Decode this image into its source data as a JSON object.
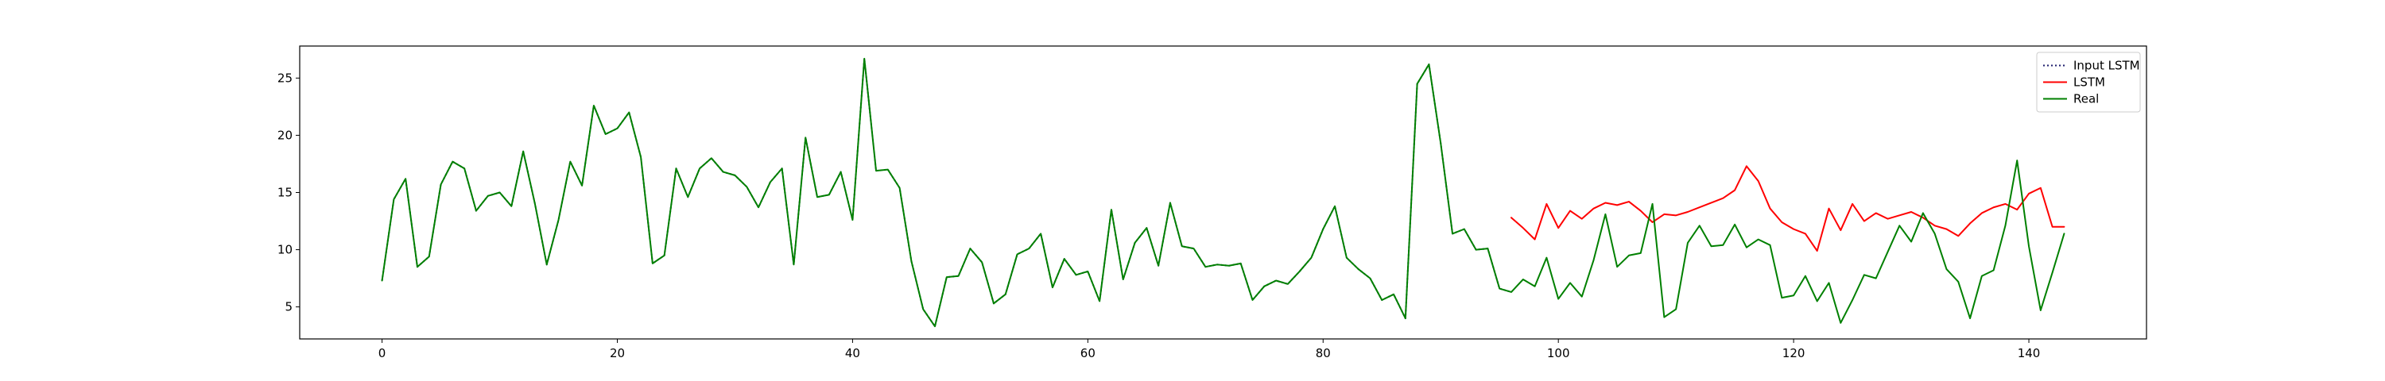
{
  "chart_data": {
    "type": "line",
    "title": "",
    "xlabel": "",
    "ylabel": "",
    "xlim": [
      -7,
      150
    ],
    "ylim": [
      2.2,
      27.8
    ],
    "grid": false,
    "legend_placement": "top-right",
    "x_ticks": [
      0,
      20,
      40,
      60,
      80,
      100,
      120,
      140
    ],
    "y_ticks": [
      5,
      10,
      15,
      20,
      25
    ],
    "series": [
      {
        "name": "Input LSTM",
        "color": "#1f1f6e",
        "style": "dotted",
        "x_start": 0,
        "values": [
          7.3,
          14.4,
          16.2,
          8.5,
          9.4,
          15.7,
          17.7,
          17.1,
          13.4,
          14.7,
          15.0,
          13.8,
          18.6,
          14.0,
          8.7,
          12.6,
          17.7,
          15.6,
          22.6,
          20.1,
          20.6,
          22.0,
          18.1,
          8.8,
          9.5,
          17.1,
          14.6,
          17.1,
          18.0,
          16.8,
          16.5,
          15.5,
          13.7,
          15.9,
          17.1,
          8.7,
          19.8,
          14.6,
          14.8,
          16.8,
          12.6,
          26.7,
          16.9,
          17.0,
          15.4,
          9.0,
          4.8,
          3.3,
          7.6,
          7.7,
          10.1,
          8.9,
          5.3,
          6.1,
          9.6,
          10.1,
          11.4,
          6.7,
          9.2,
          7.8,
          8.1,
          5.5,
          13.5,
          7.4,
          10.6,
          11.9,
          8.6,
          14.1,
          10.3,
          10.1,
          8.5,
          8.7,
          8.6,
          8.8,
          5.6,
          6.8,
          7.3,
          7.0,
          8.1,
          9.3,
          11.8,
          13.8,
          9.3,
          8.3,
          7.5,
          5.6,
          6.1,
          4.0,
          24.5,
          26.2,
          19.3,
          11.4,
          11.8,
          10.0,
          10.1,
          6.6,
          6.3
        ]
      },
      {
        "name": "LSTM",
        "color": "#ff0000",
        "style": "solid",
        "x_start": 96,
        "values": [
          12.8,
          11.9,
          10.9,
          14.0,
          11.9,
          13.4,
          12.7,
          13.6,
          14.1,
          13.9,
          14.2,
          13.4,
          12.4,
          13.1,
          13.0,
          13.3,
          13.7,
          14.1,
          14.5,
          15.2,
          17.3,
          16.0,
          13.6,
          12.4,
          11.8,
          11.4,
          9.9,
          13.6,
          11.7,
          14.0,
          12.5,
          13.2,
          12.7,
          13.0,
          13.3,
          12.8,
          12.1,
          11.8,
          11.2,
          12.3,
          13.2,
          13.7,
          14.0,
          13.5,
          14.9,
          15.4,
          12.0,
          12.0
        ]
      },
      {
        "name": "Real",
        "color": "#008000",
        "style": "solid",
        "x_start": 0,
        "values": [
          7.3,
          14.4,
          16.2,
          8.5,
          9.4,
          15.7,
          17.7,
          17.1,
          13.4,
          14.7,
          15.0,
          13.8,
          18.6,
          14.0,
          8.7,
          12.6,
          17.7,
          15.6,
          22.6,
          20.1,
          20.6,
          22.0,
          18.1,
          8.8,
          9.5,
          17.1,
          14.6,
          17.1,
          18.0,
          16.8,
          16.5,
          15.5,
          13.7,
          15.9,
          17.1,
          8.7,
          19.8,
          14.6,
          14.8,
          16.8,
          12.6,
          26.7,
          16.9,
          17.0,
          15.4,
          9.0,
          4.8,
          3.3,
          7.6,
          7.7,
          10.1,
          8.9,
          5.3,
          6.1,
          9.6,
          10.1,
          11.4,
          6.7,
          9.2,
          7.8,
          8.1,
          5.5,
          13.5,
          7.4,
          10.6,
          11.9,
          8.6,
          14.1,
          10.3,
          10.1,
          8.5,
          8.7,
          8.6,
          8.8,
          5.6,
          6.8,
          7.3,
          7.0,
          8.1,
          9.3,
          11.8,
          13.8,
          9.3,
          8.3,
          7.5,
          5.6,
          6.1,
          4.0,
          24.5,
          26.2,
          19.3,
          11.4,
          11.8,
          10.0,
          10.1,
          6.6,
          6.3,
          7.4,
          6.8,
          9.3,
          5.7,
          7.1,
          5.9,
          9.1,
          13.1,
          8.5,
          9.5,
          9.7,
          14.0,
          4.1,
          4.8,
          10.6,
          12.1,
          10.3,
          10.4,
          12.2,
          10.2,
          10.9,
          10.4,
          5.8,
          6.0,
          7.7,
          5.5,
          7.1,
          3.6,
          5.6,
          7.8,
          7.5,
          9.8,
          12.1,
          10.7,
          13.2,
          11.4,
          8.3,
          7.2,
          4.0,
          7.7,
          8.2,
          12.1,
          17.8,
          10.3,
          4.7,
          8.0,
          11.4
        ]
      }
    ]
  }
}
